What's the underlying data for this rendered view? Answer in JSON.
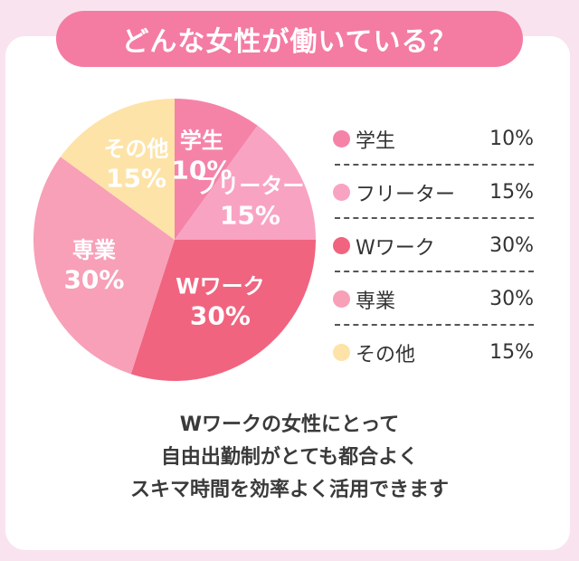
{
  "title": "どんな女性が働いている？",
  "chart_data": {
    "type": "pie",
    "title": "どんな女性が働いている？",
    "slices": [
      {
        "name": "学生",
        "value": 10,
        "value_label": "10%",
        "pie_label": "学生",
        "color": "#f583a8"
      },
      {
        "name": "フリーター",
        "value": 15,
        "value_label": "15%",
        "pie_label": "フリーター",
        "color": "#f9a3c3"
      },
      {
        "name": "Wワーク",
        "value": 30,
        "value_label": "30%",
        "pie_label": "Wワーク",
        "color": "#f0647f"
      },
      {
        "name": "専業",
        "value": 30,
        "value_label": "30%",
        "pie_label": "専業",
        "color": "#f7a0b8"
      },
      {
        "name": "その他",
        "value": 15,
        "value_label": "15%",
        "pie_label": "その他",
        "color": "#fde3a7"
      }
    ],
    "legend_position": "right"
  },
  "legend": [
    {
      "name": "学生",
      "value": "10%",
      "color": "#f583a8"
    },
    {
      "name": "フリーター",
      "value": "15%",
      "color": "#f9a3c3"
    },
    {
      "name": "Wワーク",
      "value": "30%",
      "color": "#f0647f"
    },
    {
      "name": "専業",
      "value": "30%",
      "color": "#f7a0b8"
    },
    {
      "name": "その他",
      "value": "15%",
      "color": "#fde3a7"
    }
  ],
  "caption": {
    "lines": [
      "Wワークの女性にとって",
      "自由出勤制がとても都合よく",
      "スキマ時間を効率よく活用できます"
    ]
  }
}
